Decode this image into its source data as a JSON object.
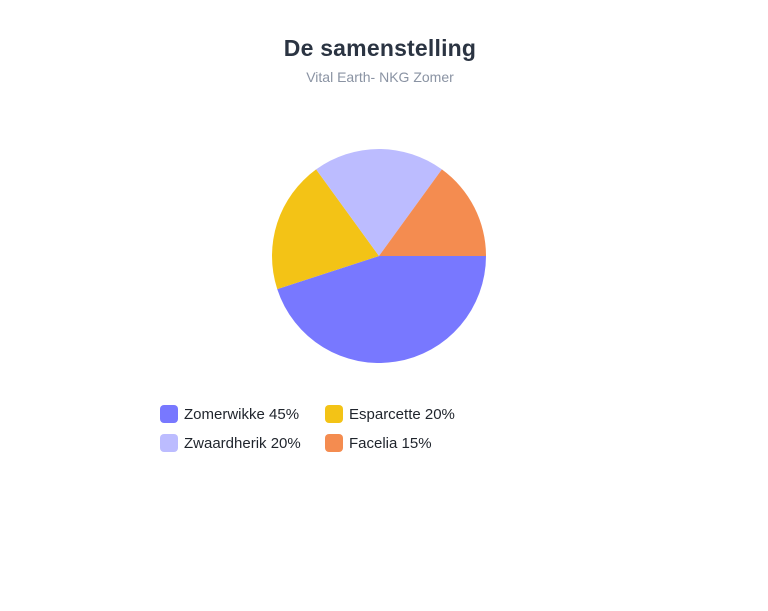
{
  "chart_data": {
    "type": "pie",
    "title": "De samenstelling",
    "subtitle": "Vital Earth- NKG Zomer",
    "legend_position": "bottom",
    "slices": [
      {
        "label": "Zomerwikke 45%",
        "value": 45,
        "color": "#7878ff"
      },
      {
        "label": "Esparcette 20%",
        "value": 20,
        "color": "#f3c316"
      },
      {
        "label": "Zwaardherik 20%",
        "value": 20,
        "color": "#bcbcff"
      },
      {
        "label": "Facelia 15%",
        "value": 15,
        "color": "#f48c50"
      }
    ]
  }
}
